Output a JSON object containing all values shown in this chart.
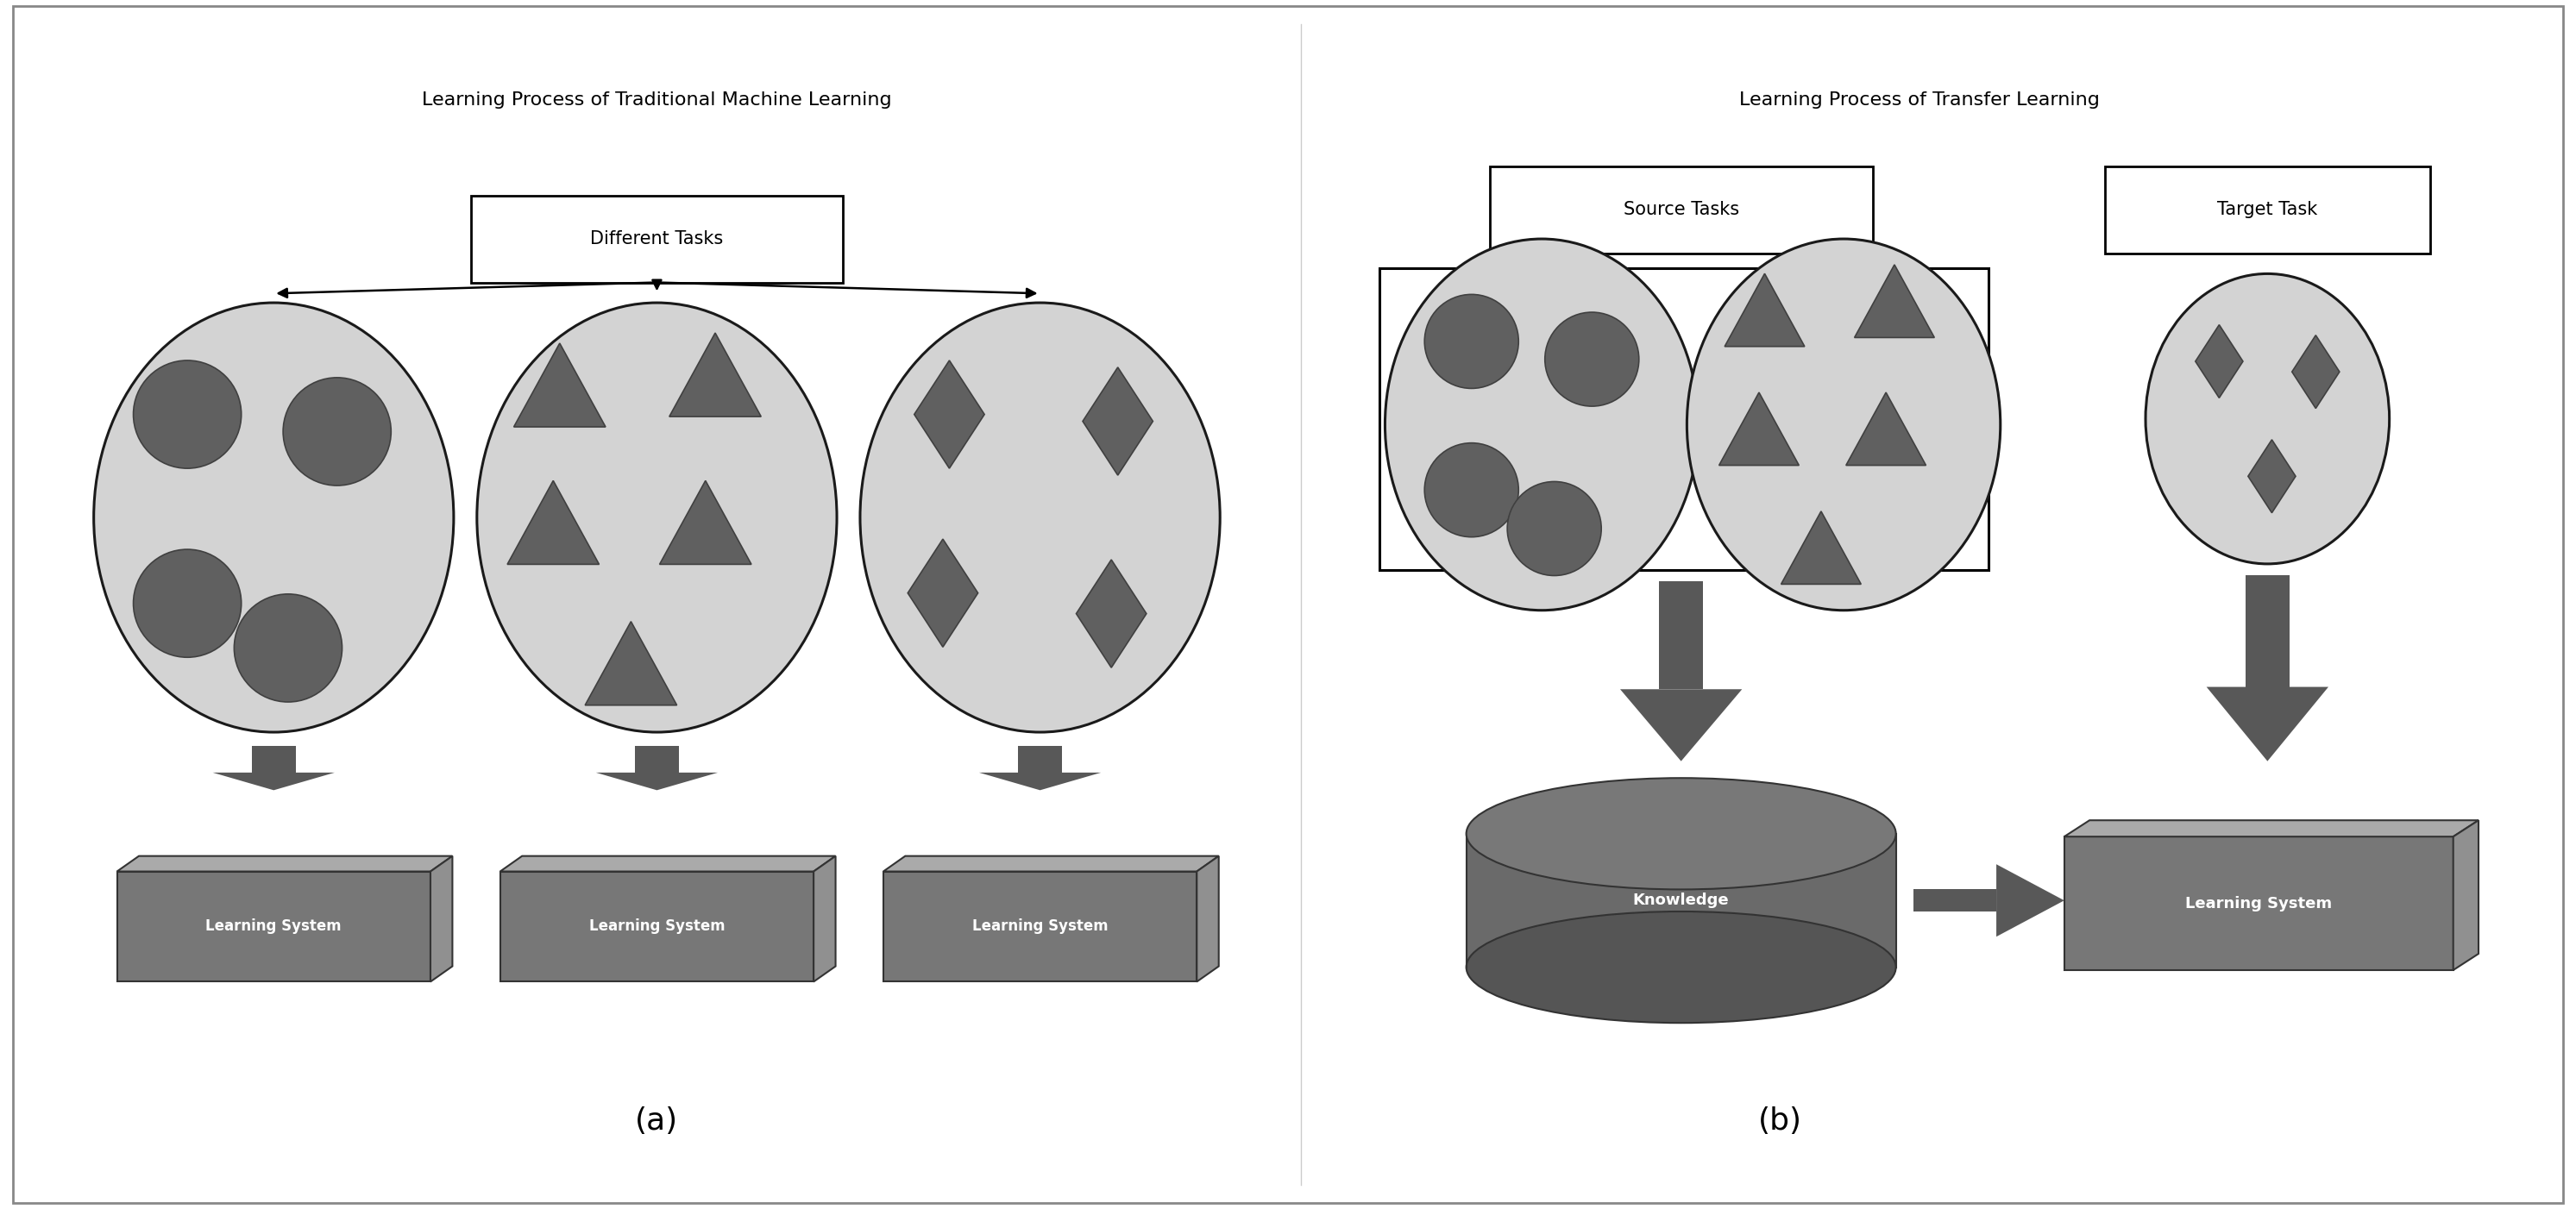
{
  "fig_width": 29.86,
  "fig_height": 14.02,
  "bg_color": "#ffffff",
  "title_a": "Learning Process of Traditional Machine Learning",
  "title_b": "Learning Process of Transfer Learning",
  "label_a": "(a)",
  "label_b": "(b)",
  "circle_fill": "#d3d3d3",
  "circle_edge": "#1a1a1a",
  "shape_fill": "#606060",
  "shape_edge": "#404040",
  "box_front_color": "#777777",
  "box_top_color": "#aaaaaa",
  "box_right_color": "#909090",
  "box_edge": "#333333",
  "arrow_color": "#585858",
  "text_color": "#000000",
  "box_text_color": "#ffffff",
  "task_box_fill": "#ffffff",
  "task_box_edge": "#000000",
  "cyl_body_color": "#6a6a6a",
  "cyl_top_color": "#787878",
  "cyl_bot_color": "#555555"
}
